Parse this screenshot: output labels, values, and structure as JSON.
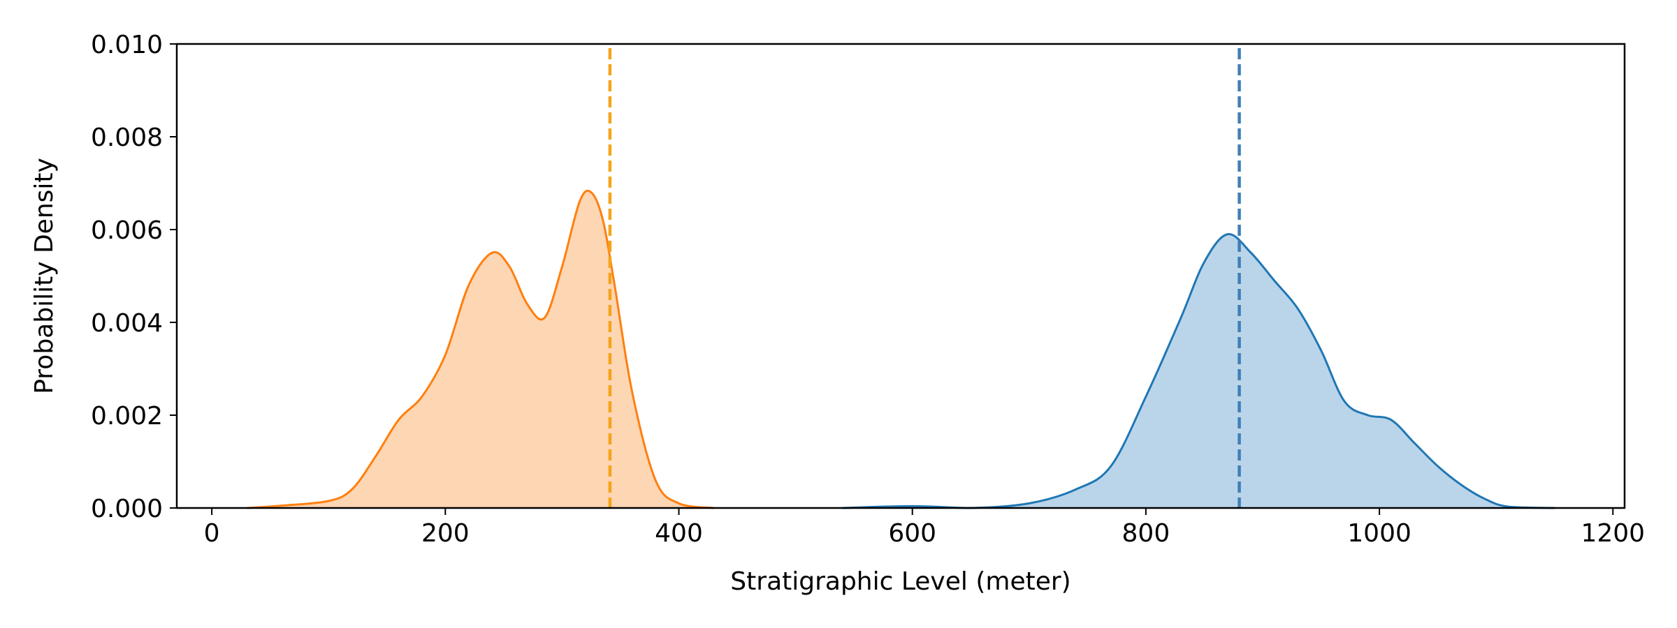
{
  "chart_data": {
    "type": "area",
    "title": "",
    "xlabel": "Stratigraphic Level (meter)",
    "ylabel": "Probability Density",
    "xlim": [
      -30,
      1210
    ],
    "ylim": [
      0,
      0.01
    ],
    "xticks": [
      0,
      200,
      400,
      600,
      800,
      1000,
      1200
    ],
    "yticks": [
      0.0,
      0.002,
      0.004,
      0.006,
      0.008,
      0.01
    ],
    "ytick_labels": [
      "0.000",
      "0.002",
      "0.004",
      "0.006",
      "0.008",
      "0.010"
    ],
    "grid": false,
    "legend": "none",
    "series": [
      {
        "color": "#ff7f0e",
        "fill_color": "#fdd6b4",
        "x": [
          30,
          60,
          100,
          120,
          140,
          160,
          180,
          200,
          220,
          240,
          255,
          270,
          285,
          300,
          315,
          325,
          335,
          345,
          360,
          380,
          400,
          430
        ],
        "y": [
          0.0,
          5e-05,
          0.00015,
          0.0004,
          0.0011,
          0.0019,
          0.0024,
          0.0033,
          0.0048,
          0.0055,
          0.0052,
          0.0044,
          0.0041,
          0.0052,
          0.0066,
          0.0068,
          0.0062,
          0.0048,
          0.0025,
          0.0006,
          0.0001,
          0.0
        ]
      },
      {
        "color": "#1f77b4",
        "fill_color": "#bad5ea",
        "x": [
          540,
          600,
          650,
          700,
          740,
          770,
          800,
          830,
          850,
          870,
          890,
          910,
          930,
          950,
          970,
          990,
          1010,
          1030,
          1050,
          1070,
          1090,
          1110,
          1150
        ],
        "y": [
          0.0,
          4e-05,
          0.0,
          0.0001,
          0.0004,
          0.0009,
          0.0024,
          0.0041,
          0.0053,
          0.0059,
          0.0055,
          0.0049,
          0.0043,
          0.0034,
          0.0023,
          0.002,
          0.0019,
          0.0014,
          0.0009,
          0.0005,
          0.0002,
          3e-05,
          0.0
        ]
      }
    ],
    "vlines": [
      {
        "x": 341,
        "color": "#f5a31a",
        "style": "dashed"
      },
      {
        "x": 880,
        "color": "#3f7fb5",
        "style": "dashed"
      }
    ]
  }
}
